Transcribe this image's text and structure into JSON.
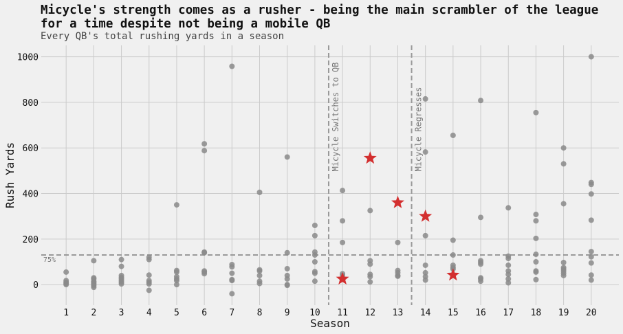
{
  "chart_data": {
    "type": "scatter",
    "title": "Micycle's strength comes as a rusher - being the main scrambler of the league for a time despite not being a mobile QB",
    "subtitle": "Every QB's total rushing yards in a season",
    "xlabel": "Season",
    "ylabel": "Rush Yards",
    "xlim": [
      0.1,
      21
    ],
    "ylim": [
      -90,
      1050
    ],
    "xticks": [
      "1",
      "2",
      "3",
      "4",
      "5",
      "6",
      "7",
      "8",
      "9",
      "10",
      "11",
      "12",
      "13",
      "14",
      "15",
      "16",
      "17",
      "18",
      "19",
      "20"
    ],
    "yticks": [
      0,
      200,
      400,
      600,
      800,
      1000
    ],
    "grid": true,
    "colors": {
      "qb": "#8a8a8a",
      "micycle": "#d32f2f",
      "reference": "#999999",
      "background": "#f0f0f0",
      "grid": "#cbcbcb"
    },
    "series": [
      {
        "marker": "circle",
        "points": [
          [
            1,
            55
          ],
          [
            1,
            18
          ],
          [
            1,
            10
          ],
          [
            1,
            5
          ],
          [
            1,
            0
          ],
          [
            2,
            105
          ],
          [
            2,
            30
          ],
          [
            2,
            25
          ],
          [
            2,
            15
          ],
          [
            2,
            10
          ],
          [
            2,
            5
          ],
          [
            2,
            0
          ],
          [
            2,
            -5
          ],
          [
            2,
            -12
          ],
          [
            3,
            110
          ],
          [
            3,
            80
          ],
          [
            3,
            40
          ],
          [
            3,
            32
          ],
          [
            3,
            25
          ],
          [
            3,
            18
          ],
          [
            3,
            10
          ],
          [
            3,
            3
          ],
          [
            4,
            120
          ],
          [
            4,
            110
          ],
          [
            4,
            42
          ],
          [
            4,
            18
          ],
          [
            4,
            10
          ],
          [
            4,
            3
          ],
          [
            4,
            -25
          ],
          [
            5,
            350
          ],
          [
            5,
            62
          ],
          [
            5,
            55
          ],
          [
            5,
            35
          ],
          [
            5,
            25
          ],
          [
            5,
            18
          ],
          [
            5,
            0
          ],
          [
            6,
            618
          ],
          [
            6,
            588
          ],
          [
            6,
            143
          ],
          [
            6,
            140
          ],
          [
            6,
            60
          ],
          [
            6,
            55
          ],
          [
            6,
            48
          ],
          [
            7,
            958
          ],
          [
            7,
            88
          ],
          [
            7,
            78
          ],
          [
            7,
            50
          ],
          [
            7,
            22
          ],
          [
            7,
            18
          ],
          [
            7,
            -40
          ],
          [
            8,
            405
          ],
          [
            8,
            65
          ],
          [
            8,
            60
          ],
          [
            8,
            40
          ],
          [
            8,
            15
          ],
          [
            8,
            5
          ],
          [
            9,
            560
          ],
          [
            9,
            140
          ],
          [
            9,
            70
          ],
          [
            9,
            40
          ],
          [
            9,
            25
          ],
          [
            9,
            0
          ],
          [
            9,
            -3
          ],
          [
            10,
            260
          ],
          [
            10,
            215
          ],
          [
            10,
            143
          ],
          [
            10,
            130
          ],
          [
            10,
            100
          ],
          [
            10,
            57
          ],
          [
            10,
            50
          ],
          [
            10,
            15
          ],
          [
            11,
            413
          ],
          [
            11,
            280
          ],
          [
            11,
            185
          ],
          [
            11,
            48
          ],
          [
            11,
            40
          ],
          [
            12,
            325
          ],
          [
            12,
            105
          ],
          [
            12,
            90
          ],
          [
            12,
            45
          ],
          [
            12,
            35
          ],
          [
            12,
            12
          ],
          [
            13,
            185
          ],
          [
            13,
            62
          ],
          [
            13,
            52
          ],
          [
            13,
            40
          ],
          [
            13,
            37
          ],
          [
            14,
            815
          ],
          [
            14,
            582
          ],
          [
            14,
            215
          ],
          [
            14,
            85
          ],
          [
            14,
            52
          ],
          [
            14,
            35
          ],
          [
            14,
            20
          ],
          [
            15,
            655
          ],
          [
            15,
            195
          ],
          [
            15,
            130
          ],
          [
            15,
            85
          ],
          [
            15,
            75
          ],
          [
            15,
            68
          ],
          [
            16,
            808
          ],
          [
            16,
            295
          ],
          [
            16,
            105
          ],
          [
            16,
            98
          ],
          [
            16,
            90
          ],
          [
            16,
            30
          ],
          [
            16,
            25
          ],
          [
            16,
            15
          ],
          [
            17,
            337
          ],
          [
            17,
            125
          ],
          [
            17,
            115
          ],
          [
            17,
            85
          ],
          [
            17,
            60
          ],
          [
            17,
            45
          ],
          [
            17,
            25
          ],
          [
            17,
            8
          ],
          [
            18,
            755
          ],
          [
            18,
            308
          ],
          [
            18,
            280
          ],
          [
            18,
            203
          ],
          [
            18,
            133
          ],
          [
            18,
            100
          ],
          [
            18,
            60
          ],
          [
            18,
            55
          ],
          [
            18,
            22
          ],
          [
            19,
            600
          ],
          [
            19,
            530
          ],
          [
            19,
            355
          ],
          [
            19,
            97
          ],
          [
            19,
            75
          ],
          [
            19,
            68
          ],
          [
            19,
            60
          ],
          [
            19,
            50
          ],
          [
            19,
            40
          ],
          [
            20,
            1000
          ],
          [
            20,
            448
          ],
          [
            20,
            440
          ],
          [
            20,
            398
          ],
          [
            20,
            283
          ],
          [
            20,
            145
          ],
          [
            20,
            122
          ],
          [
            20,
            95
          ],
          [
            20,
            42
          ],
          [
            20,
            20
          ]
        ]
      },
      {
        "marker": "star",
        "points": [
          [
            11,
            25
          ],
          [
            12,
            555
          ],
          [
            13,
            360
          ],
          [
            14,
            300
          ],
          [
            15,
            42
          ]
        ]
      }
    ],
    "reference_lines": [
      {
        "orientation": "horizontal",
        "y": 130,
        "label": "75%"
      },
      {
        "orientation": "vertical",
        "x": 10.5,
        "label": "Micycle Switches to QB"
      },
      {
        "orientation": "vertical",
        "x": 13.5,
        "label": "Micycle Regresses"
      }
    ]
  }
}
